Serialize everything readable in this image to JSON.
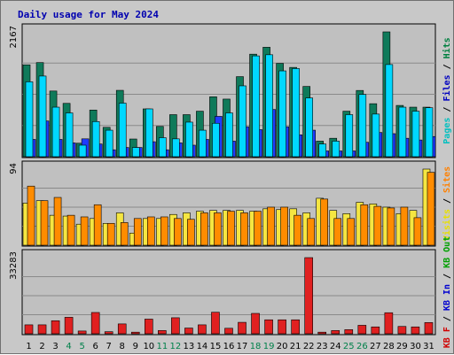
{
  "chart_data": {
    "type": "bar",
    "title": "Daily usage for May 2024",
    "categories": [
      "1",
      "2",
      "3",
      "4",
      "5",
      "6",
      "7",
      "8",
      "9",
      "10",
      "11",
      "12",
      "13",
      "14",
      "15",
      "16",
      "17",
      "18",
      "19",
      "20",
      "21",
      "22",
      "23",
      "24",
      "25",
      "26",
      "27",
      "28",
      "29",
      "30",
      "31"
    ],
    "weekend_days": [
      "4",
      "5",
      "11",
      "12",
      "18",
      "19",
      "25",
      "26"
    ],
    "panels": [
      {
        "name": "hits-panel",
        "ymax_label": "2167",
        "ymax": 2167,
        "legend": [
          {
            "text": "Pages",
            "color": "#00c0c0"
          },
          {
            "text": "Files",
            "color": "#0000c0"
          },
          {
            "text": "Hits",
            "color": "#008040"
          }
        ],
        "series": [
          {
            "name": "Hits",
            "color": "#0f7a5a",
            "values": [
              1595,
              1634,
              1140,
              926,
              234,
              810,
              510,
              1152,
              307,
              830,
              526,
              730,
              730,
              790,
              1040,
              1000,
              1390,
              1780,
              1900,
              1620,
              1550,
              1220,
              270,
              320,
              790,
              1150,
              920,
              2167,
              890,
              860,
              860
            ]
          },
          {
            "name": "Files",
            "color": "#1e3cff",
            "values": [
              300,
              620,
              300,
              240,
              310,
              220,
              120,
              160,
              160,
              260,
              120,
              240,
              200,
              300,
              700,
              270,
              520,
              470,
              820,
              520,
              380,
              460,
              100,
              100,
              100,
              250,
              420,
              400,
              320,
              290,
              350
            ]
          },
          {
            "name": "Pages",
            "color": "#00d8ff",
            "values": [
              1300,
              1400,
              860,
              760,
              200,
              610,
              460,
              930,
              160,
              830,
              330,
              310,
              600,
              460,
              580,
              760,
              1230,
              1750,
              1770,
              1490,
              1530,
              1020,
              220,
              270,
              730,
              1080,
              740,
              1600,
              860,
              790,
              850
            ]
          }
        ]
      },
      {
        "name": "visits-panel",
        "ymax_label": "94",
        "ymax": 94,
        "legend": [
          {
            "text": "Visits",
            "color": "#e8e000"
          },
          {
            "text": "Sites",
            "color": "#ff8000"
          }
        ],
        "series": [
          {
            "name": "Visits",
            "color": "#f5e642",
            "values": [
              52,
              55,
              37,
              36,
              26,
              33,
              27,
              40,
              15,
              33,
              33,
              38,
              40,
              42,
              43,
              43,
              43,
              42,
              45,
              44,
              45,
              40,
              58,
              43,
              39,
              53,
              51,
              47,
              39,
              43,
              94
            ]
          },
          {
            "name": "Sites",
            "color": "#ff8c00",
            "values": [
              73,
              55,
              59,
              37,
              35,
              50,
              27,
              28,
              33,
              35,
              35,
              33,
              32,
              40,
              40,
              42,
              40,
              42,
              47,
              47,
              37,
              33,
              57,
              33,
              33,
              50,
              48,
              46,
              47,
              34,
              90
            ]
          }
        ]
      },
      {
        "name": "kbytes-panel",
        "ymax_label": "33283",
        "ymax": 33283,
        "legend": [
          {
            "text": "KB F",
            "color": "#d00000"
          },
          {
            "text": "KB In",
            "color": "#0000d0"
          },
          {
            "text": "KB Out",
            "color": "#00a000"
          }
        ],
        "series": [
          {
            "name": "KB F",
            "color": "#e02020",
            "values": [
              3900,
              3900,
              5700,
              7200,
              1200,
              9300,
              900,
              4300,
              700,
              6400,
              1400,
              7000,
              2500,
              3900,
              9400,
              2400,
              5000,
              8900,
              6100,
              6100,
              6100,
              33283,
              700,
              1400,
              1800,
              3700,
              3000,
              9200,
              3200,
              3000,
              4900
            ]
          }
        ]
      }
    ]
  }
}
